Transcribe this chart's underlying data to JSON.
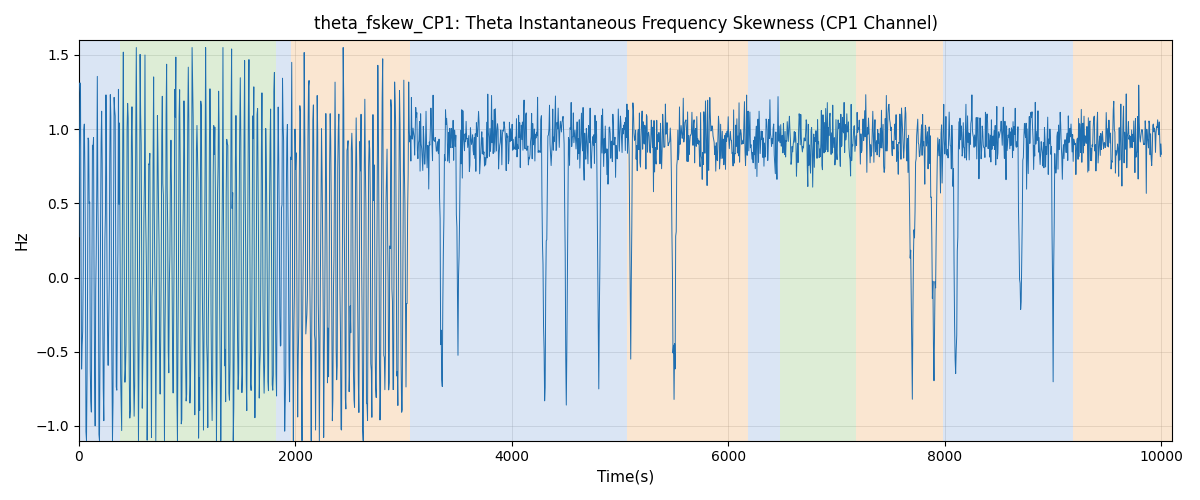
{
  "title": "theta_fskew_CP1: Theta Instantaneous Frequency Skewness (CP1 Channel)",
  "xlabel": "Time(s)",
  "ylabel": "Hz",
  "xlim": [
    0,
    10100
  ],
  "ylim": [
    -1.1,
    1.6
  ],
  "yticks": [
    -1.0,
    -0.5,
    0.0,
    0.5,
    1.0,
    1.5
  ],
  "xticks": [
    0,
    2000,
    4000,
    6000,
    8000,
    10000
  ],
  "line_color": "#1f6eb0",
  "background_color": "#ffffff",
  "bands": [
    {
      "xmin": 0,
      "xmax": 380,
      "color": "#aec6e8",
      "alpha": 0.45
    },
    {
      "xmin": 380,
      "xmax": 1820,
      "color": "#b5d9a4",
      "alpha": 0.45
    },
    {
      "xmin": 1820,
      "xmax": 1960,
      "color": "#aec6e8",
      "alpha": 0.45
    },
    {
      "xmin": 1960,
      "xmax": 3060,
      "color": "#f5c99a",
      "alpha": 0.45
    },
    {
      "xmin": 3060,
      "xmax": 5060,
      "color": "#aec6e8",
      "alpha": 0.45
    },
    {
      "xmin": 5060,
      "xmax": 6180,
      "color": "#f5c99a",
      "alpha": 0.45
    },
    {
      "xmin": 6180,
      "xmax": 6480,
      "color": "#aec6e8",
      "alpha": 0.45
    },
    {
      "xmin": 6480,
      "xmax": 7180,
      "color": "#b5d9a4",
      "alpha": 0.45
    },
    {
      "xmin": 7180,
      "xmax": 7980,
      "color": "#f5c99a",
      "alpha": 0.45
    },
    {
      "xmin": 7980,
      "xmax": 9180,
      "color": "#aec6e8",
      "alpha": 0.45
    },
    {
      "xmin": 9180,
      "xmax": 10100,
      "color": "#f5c99a",
      "alpha": 0.45
    }
  ],
  "seed": 42,
  "n_points": 2000
}
